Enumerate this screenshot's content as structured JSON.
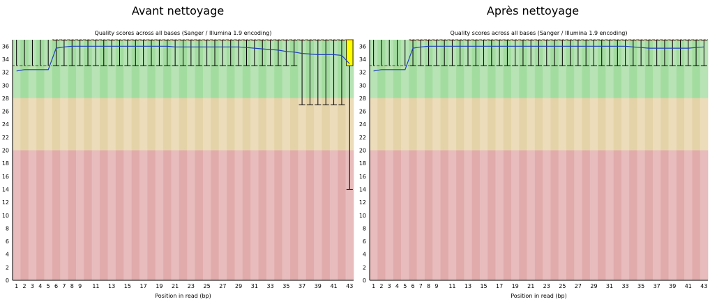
{
  "panels": [
    {
      "heading": "Avant nettoyage",
      "chart_data": {
        "type": "box",
        "title": "Quality scores across all bases (Sanger / Illumina 1.9 encoding)",
        "xlabel": "Position in read (bp)",
        "ylabel": "",
        "ylim": [
          0,
          37
        ],
        "yticks": [
          0,
          2,
          4,
          6,
          8,
          10,
          12,
          14,
          16,
          18,
          20,
          22,
          24,
          26,
          28,
          30,
          32,
          34,
          36
        ],
        "xtick_labels": [
          "1",
          "2",
          "3",
          "4",
          "5",
          "6",
          "7",
          "8",
          "9",
          "11",
          "13",
          "15",
          "17",
          "19",
          "21",
          "23",
          "25",
          "27",
          "29",
          "31",
          "33",
          "35",
          "37",
          "39",
          "41",
          "43"
        ],
        "quality_zones": [
          {
            "name": "good",
            "from": 28,
            "to": 37,
            "colors": [
              "#b7e3b5",
              "#a3dc9f"
            ]
          },
          {
            "name": "reasonable",
            "from": 20,
            "to": 28,
            "colors": [
              "#ecdcb9",
              "#e4d3a8"
            ]
          },
          {
            "name": "poor",
            "from": 0,
            "to": 20,
            "colors": [
              "#e8bcbc",
              "#e1abab"
            ]
          }
        ],
        "colors": {
          "mean": "#1f3fbf",
          "median": "#d60000",
          "box": "#ffff00",
          "whisker": "#000000"
        },
        "series": [
          {
            "name": "Mean",
            "type": "line",
            "values": [
              32.2,
              32.4,
              32.4,
              32.4,
              32.4,
              35.7,
              35.9,
              36.0,
              36.0,
              36.0,
              36.0,
              36.0,
              36.0,
              36.0,
              36.0,
              36.0,
              36.0,
              36.0,
              36.0,
              36.0,
              35.9,
              35.9,
              35.9,
              35.9,
              35.9,
              35.9,
              35.9,
              35.9,
              35.9,
              35.8,
              35.7,
              35.6,
              35.5,
              35.4,
              35.2,
              35.1,
              34.9,
              34.8,
              34.7,
              34.7,
              34.7,
              34.6,
              33.3
            ]
          },
          {
            "name": "Median",
            "type": "line",
            "values": [
              33,
              33,
              33,
              33,
              33,
              37,
              37,
              37,
              37,
              37,
              37,
              37,
              37,
              37,
              37,
              37,
              37,
              37,
              37,
              37,
              37,
              37,
              37,
              37,
              37,
              37,
              37,
              37,
              37,
              37,
              37,
              37,
              37,
              37,
              37,
              37,
              37,
              37,
              37,
              37,
              37,
              37,
              37
            ]
          },
          {
            "name": "Upper quartile",
            "type": "box",
            "values": [
              33,
              33,
              33,
              33,
              33,
              37,
              37,
              37,
              37,
              37,
              37,
              37,
              37,
              37,
              37,
              37,
              37,
              37,
              37,
              37,
              37,
              37,
              37,
              37,
              37,
              37,
              37,
              37,
              37,
              37,
              37,
              37,
              37,
              37,
              37,
              37,
              37,
              37,
              37,
              37,
              37,
              37,
              37
            ]
          },
          {
            "name": "Lower quartile",
            "type": "box",
            "values": [
              33,
              33,
              33,
              33,
              33,
              37,
              37,
              37,
              37,
              37,
              37,
              37,
              37,
              37,
              37,
              37,
              37,
              37,
              37,
              37,
              37,
              37,
              37,
              37,
              37,
              37,
              37,
              37,
              37,
              37,
              37,
              37,
              37,
              37,
              37,
              37,
              37,
              37,
              37,
              37,
              37,
              37,
              33
            ]
          },
          {
            "name": "10th percentile",
            "type": "whisker",
            "values": [
              33,
              33,
              33,
              33,
              33,
              33,
              33,
              33,
              33,
              33,
              33,
              33,
              33,
              33,
              33,
              33,
              33,
              33,
              33,
              33,
              33,
              33,
              33,
              33,
              33,
              33,
              33,
              33,
              33,
              33,
              33,
              33,
              33,
              33,
              33,
              33,
              27,
              27,
              27,
              27,
              27,
              27,
              14
            ]
          }
        ]
      }
    },
    {
      "heading": "Après nettoyage",
      "chart_data": {
        "type": "box",
        "title": "Quality scores across all bases (Sanger / Illumina 1.9 encoding)",
        "xlabel": "Position in read (bp)",
        "ylabel": "",
        "ylim": [
          0,
          37
        ],
        "yticks": [
          0,
          2,
          4,
          6,
          8,
          10,
          12,
          14,
          16,
          18,
          20,
          22,
          24,
          26,
          28,
          30,
          32,
          34,
          36
        ],
        "xtick_labels": [
          "1",
          "2",
          "3",
          "4",
          "5",
          "6",
          "7",
          "8",
          "9",
          "11",
          "13",
          "15",
          "17",
          "19",
          "21",
          "23",
          "25",
          "27",
          "29",
          "31",
          "33",
          "35",
          "37",
          "39",
          "41",
          "43"
        ],
        "quality_zones": [
          {
            "name": "good",
            "from": 28,
            "to": 37,
            "colors": [
              "#b7e3b5",
              "#a3dc9f"
            ]
          },
          {
            "name": "reasonable",
            "from": 20,
            "to": 28,
            "colors": [
              "#ecdcb9",
              "#e4d3a8"
            ]
          },
          {
            "name": "poor",
            "from": 0,
            "to": 20,
            "colors": [
              "#e8bcbc",
              "#e1abab"
            ]
          }
        ],
        "colors": {
          "mean": "#1f3fbf",
          "median": "#d60000",
          "box": "#ffff00",
          "whisker": "#000000"
        },
        "series": [
          {
            "name": "Mean",
            "type": "line",
            "values": [
              32.2,
              32.4,
              32.4,
              32.4,
              32.4,
              35.7,
              35.9,
              36.0,
              36.0,
              36.0,
              36.0,
              36.0,
              36.0,
              36.0,
              36.0,
              36.0,
              36.0,
              36.0,
              36.0,
              36.0,
              36.0,
              36.0,
              36.0,
              36.0,
              36.0,
              36.0,
              36.0,
              36.0,
              36.0,
              36.0,
              36.0,
              36.0,
              36.0,
              35.9,
              35.8,
              35.7,
              35.7,
              35.7,
              35.7,
              35.7,
              35.7,
              35.8,
              35.9
            ]
          },
          {
            "name": "Median",
            "type": "line",
            "values": [
              33,
              33,
              33,
              33,
              33,
              37,
              37,
              37,
              37,
              37,
              37,
              37,
              37,
              37,
              37,
              37,
              37,
              37,
              37,
              37,
              37,
              37,
              37,
              37,
              37,
              37,
              37,
              37,
              37,
              37,
              37,
              37,
              37,
              37,
              37,
              37,
              37,
              37,
              37,
              37,
              37,
              37,
              37
            ]
          },
          {
            "name": "Upper quartile",
            "type": "box",
            "values": [
              33,
              33,
              33,
              33,
              33,
              37,
              37,
              37,
              37,
              37,
              37,
              37,
              37,
              37,
              37,
              37,
              37,
              37,
              37,
              37,
              37,
              37,
              37,
              37,
              37,
              37,
              37,
              37,
              37,
              37,
              37,
              37,
              37,
              37,
              37,
              37,
              37,
              37,
              37,
              37,
              37,
              37,
              37
            ]
          },
          {
            "name": "Lower quartile",
            "type": "box",
            "values": [
              33,
              33,
              33,
              33,
              33,
              37,
              37,
              37,
              37,
              37,
              37,
              37,
              37,
              37,
              37,
              37,
              37,
              37,
              37,
              37,
              37,
              37,
              37,
              37,
              37,
              37,
              37,
              37,
              37,
              37,
              37,
              37,
              37,
              37,
              37,
              37,
              37,
              37,
              37,
              37,
              37,
              37,
              37
            ]
          },
          {
            "name": "10th percentile",
            "type": "whisker",
            "values": [
              33,
              33,
              33,
              33,
              33,
              33,
              33,
              33,
              33,
              33,
              33,
              33,
              33,
              33,
              33,
              33,
              33,
              33,
              33,
              33,
              33,
              33,
              33,
              33,
              33,
              33,
              33,
              33,
              33,
              33,
              33,
              33,
              33,
              33,
              33,
              33,
              33,
              33,
              33,
              33,
              33,
              33,
              33
            ]
          }
        ]
      }
    }
  ]
}
